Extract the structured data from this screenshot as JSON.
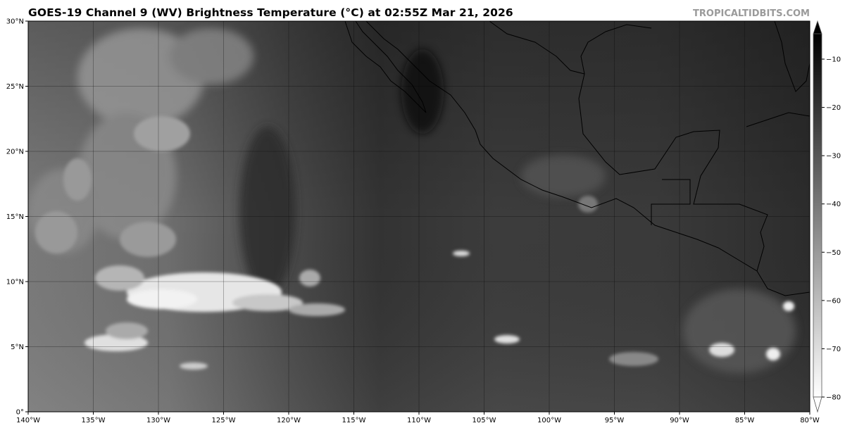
{
  "title": "GOES-19 Channel 9 (WV) Brightness Temperature (°C) at 02:55Z Mar 21, 2026",
  "brand": "TROPICALTIDBITS.COM",
  "map": {
    "lon_range": [
      -140,
      -80
    ],
    "lat_range": [
      0,
      30
    ],
    "lon_ticks": [
      {
        "value": -140,
        "label": "140°W"
      },
      {
        "value": -135,
        "label": "135°W"
      },
      {
        "value": -130,
        "label": "130°W"
      },
      {
        "value": -125,
        "label": "125°W"
      },
      {
        "value": -120,
        "label": "120°W"
      },
      {
        "value": -115,
        "label": "115°W"
      },
      {
        "value": -110,
        "label": "110°W"
      },
      {
        "value": -105,
        "label": "105°W"
      },
      {
        "value": -100,
        "label": "100°W"
      },
      {
        "value": -95,
        "label": "95°W"
      },
      {
        "value": -90,
        "label": "90°W"
      },
      {
        "value": -85,
        "label": "85°W"
      },
      {
        "value": -80,
        "label": "80°W"
      }
    ],
    "lat_ticks": [
      {
        "value": 0,
        "label": "0°"
      },
      {
        "value": 5,
        "label": "5°N"
      },
      {
        "value": 10,
        "label": "10°N"
      },
      {
        "value": 15,
        "label": "15°N"
      },
      {
        "value": 20,
        "label": "20°N"
      },
      {
        "value": 25,
        "label": "25°N"
      },
      {
        "value": 30,
        "label": "30°N"
      }
    ],
    "gridlines": true,
    "colormap": "grayscale (cold = white, warm = black)"
  },
  "colorbar": {
    "ticks": [
      {
        "value": -10,
        "label": "−10"
      },
      {
        "value": -20,
        "label": "−20"
      },
      {
        "value": -30,
        "label": "−30"
      },
      {
        "value": -40,
        "label": "−40"
      },
      {
        "value": -50,
        "label": "−50"
      },
      {
        "value": -60,
        "label": "−60"
      },
      {
        "value": -70,
        "label": "−70"
      },
      {
        "value": -80,
        "label": "−80"
      }
    ],
    "extend": "both"
  }
}
